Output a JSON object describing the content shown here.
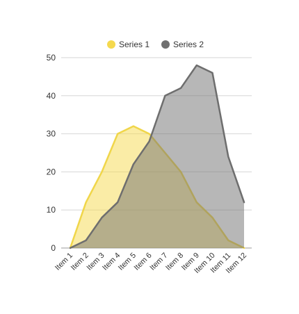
{
  "chart_data": {
    "type": "area",
    "categories": [
      "Item 1",
      "Item 2",
      "Item 3",
      "Item 4",
      "Item 5",
      "Item 6",
      "Item 7",
      "Item 8",
      "Item 9",
      "Item 10",
      "Item 11",
      "Item 12"
    ],
    "series": [
      {
        "name": "Series 1",
        "values": [
          0,
          12,
          20,
          30,
          32,
          30,
          25,
          20,
          12,
          8,
          2,
          0
        ],
        "color": "#f5d94e"
      },
      {
        "name": "Series 2",
        "values": [
          0,
          2,
          8,
          12,
          22,
          28,
          40,
          42,
          48,
          46,
          24,
          12
        ],
        "color": "#707070"
      }
    ],
    "ylim": [
      0,
      50
    ],
    "yticks": [
      "0",
      "10",
      "20",
      "30",
      "40",
      "50"
    ],
    "grid": true,
    "legend": "top-center"
  }
}
